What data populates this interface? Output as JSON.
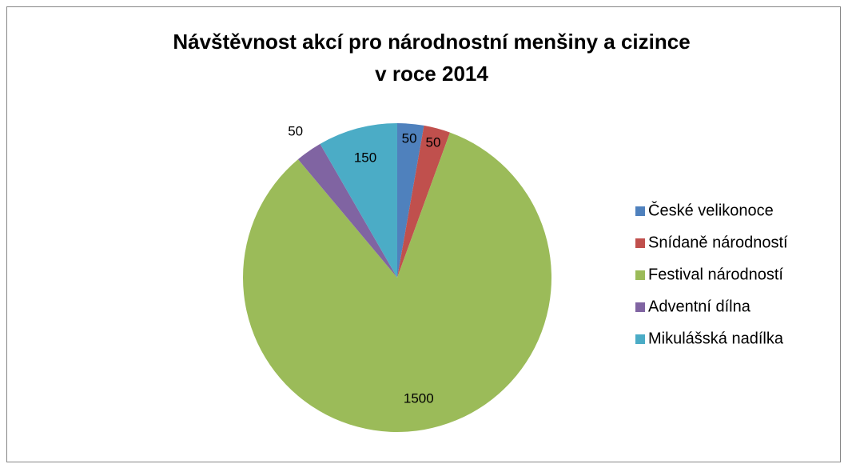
{
  "chart_data": {
    "type": "pie",
    "title": [
      "Návštěvnost  akcí pro národnostní menšiny a cizince",
      "v roce 2014"
    ],
    "categories": [
      "České velikonoce",
      "Snídaně národností",
      "Festival národností",
      "Adventní dílna",
      "Mikulášská nadílka"
    ],
    "values": [
      50,
      50,
      1500,
      50,
      150
    ],
    "colors": [
      "#4f81bd",
      "#c0504d",
      "#9bbb59",
      "#8064a2",
      "#4bacc6"
    ],
    "legend": "right"
  }
}
